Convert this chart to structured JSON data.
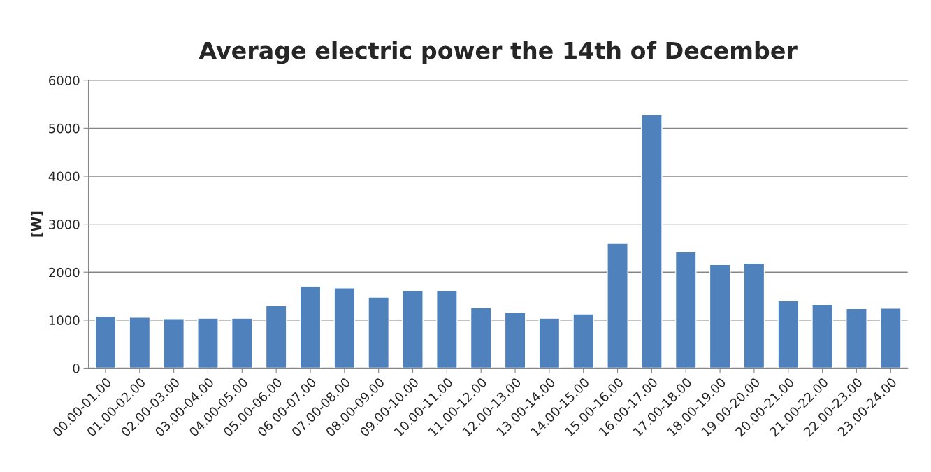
{
  "chart_data": {
    "type": "bar",
    "title": "Average electric power the 14th of December",
    "ylabel": "[W]",
    "categories": [
      "00.00-01.00",
      "01.00-02.00",
      "02.00-03.00",
      "03.00-04.00",
      "04.00-05.00",
      "05.00-06.00",
      "06.00-07.00",
      "07.00-08.00",
      "08.00-09.00",
      "09.00-10.00",
      "10.00-11.00",
      "11.00-12.00",
      "12.00-13.00",
      "13.00-14.00",
      "14.00-15.00",
      "15.00-16.00",
      "16.00-17.00",
      "17.00-18.00",
      "18.00-19.00",
      "19.00-20.00",
      "20.00-21.00",
      "21.00-22.00",
      "22.00-23.00",
      "23.00-24.00"
    ],
    "values": [
      1080,
      1060,
      1030,
      1040,
      1040,
      1300,
      1700,
      1670,
      1480,
      1620,
      1620,
      1260,
      1160,
      1040,
      1130,
      2600,
      5280,
      2420,
      2160,
      2190,
      1400,
      1330,
      1240,
      1250
    ],
    "color": "#4f81bd",
    "ylim": [
      0,
      6000
    ],
    "yticks": [
      0,
      1000,
      2000,
      3000,
      4000,
      5000,
      6000
    ],
    "grid": "y",
    "legend": false
  }
}
